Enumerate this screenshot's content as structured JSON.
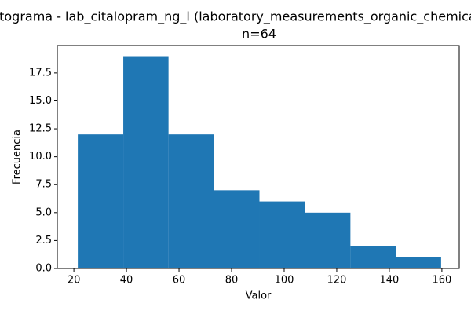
{
  "chart_data": {
    "type": "histogram",
    "title": "Histograma - lab_citalopram_ng_l (laboratory_measurements_organic_chemicals)",
    "subtitle": "n=64",
    "x_label": "Valor",
    "y_label": "Frecuencia",
    "bins": [
      21.5,
      38.8,
      56.0,
      73.3,
      90.6,
      107.9,
      125.2,
      142.5,
      159.7
    ],
    "values": [
      12,
      19,
      12,
      7,
      6,
      5,
      2,
      1
    ],
    "color": "#1f77b4",
    "xlim": [
      13.7,
      166.6
    ],
    "xticks": [
      20,
      40,
      60,
      80,
      100,
      120,
      140,
      160
    ],
    "ylim": [
      0,
      19.95
    ],
    "yticks": [
      {
        "value": 0,
        "label": "0.0"
      },
      2.5,
      {
        "value": 5,
        "label": "5.0"
      },
      7.5,
      {
        "value": 10,
        "label": "10.0"
      },
      12.5,
      {
        "value": 15,
        "label": "15.0"
      },
      17.5
    ]
  }
}
